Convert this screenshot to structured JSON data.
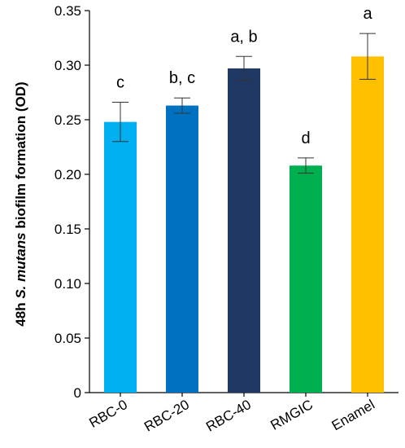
{
  "chart_data": {
    "type": "bar",
    "categories": [
      "RBC-0",
      "RBC-20",
      "RBC-40",
      "RMGIC",
      "Enamel"
    ],
    "values": [
      0.248,
      0.263,
      0.297,
      0.208,
      0.308
    ],
    "error": [
      0.018,
      0.007,
      0.011,
      0.007,
      0.021
    ],
    "significance": [
      "c",
      "b, c",
      "a, b",
      "d",
      "a"
    ],
    "colors": [
      "#00B0F0",
      "#0070C0",
      "#1F3864",
      "#00B050",
      "#FFC000"
    ],
    "ylabel_parts": [
      "48h ",
      "S. mutans",
      " biofilm formation (OD)"
    ],
    "ylim": [
      0,
      0.35
    ],
    "yticks": [
      "0",
      "0.05",
      "0.10",
      "0.15",
      "0.20",
      "0.25",
      "0.30",
      "0.35"
    ],
    "grid": false,
    "legend": "none"
  }
}
